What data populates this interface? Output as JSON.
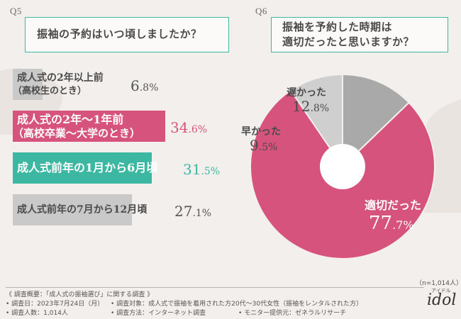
{
  "q5": {
    "label": "Q5",
    "question": "振袖の予約はいつ頃しましたか？"
  },
  "q6": {
    "label": "Q6",
    "question_line1": "振袖を予約した時期は",
    "question_line2": "適切だったと思いますか？"
  },
  "chart_data": [
    {
      "type": "bar",
      "orientation": "horizontal",
      "title": "振袖の予約はいつ頃しましたか？",
      "categories": [
        "成人式の2年以上前（高校生のとき）",
        "成人式の2年〜1年前（高校卒業〜大学のとき）",
        "成人式前年の1月から6月頃",
        "成人式前年の7月から12月頃"
      ],
      "values": [
        6.8,
        34.6,
        31.5,
        27.1
      ],
      "unit": "%",
      "colors": [
        "#c9c9c9",
        "#d6537d",
        "#3cb7a2",
        "#c9c9c9"
      ]
    },
    {
      "type": "pie",
      "title": "振袖を予約した時期は適切だったと思いますか？",
      "labels": [
        "適切だった",
        "早かった",
        "遅かった"
      ],
      "values": [
        77.7,
        9.5,
        12.8
      ],
      "unit": "%",
      "colors": [
        "#d6537d",
        "#cfcfcf",
        "#a9a9a9"
      ],
      "note": "（n=1,014人）"
    }
  ],
  "bars": [
    {
      "line1": "成人式の2年以上前",
      "line2": "（高校生のとき）",
      "pct_int": "6",
      "pct_dec": ".8%"
    },
    {
      "line1": "成人式の2年〜1年前",
      "line2": "（高校卒業〜大学のとき）",
      "pct_int": "34",
      "pct_dec": ".6%"
    },
    {
      "line1": "成人式前年の1月から6月頃",
      "line2": "",
      "pct_int": "31",
      "pct_dec": ".5%"
    },
    {
      "line1": "成人式前年の7月から12月頃",
      "line2": "",
      "pct_int": "27",
      "pct_dec": ".1%"
    }
  ],
  "pie_labels": {
    "appropriate": {
      "name": "適切だった",
      "pct_int": "77",
      "pct_dec": ".7%"
    },
    "early": {
      "name": "早かった",
      "pct_int": "9",
      "pct_dec": ".5%"
    },
    "late": {
      "name": "遅かった",
      "pct_int": "12",
      "pct_dec": ".8%"
    },
    "sample": "（n=1,014人）"
  },
  "footer": {
    "overview": "《 調査概要：「成人式の振袖選び」に関する調査 》",
    "date": "• 調査日：2023年7月24日（月）",
    "target": "• 調査対象：成人式で振袖を着用された方20代〜30代女性（振袖をレンタルされた方）",
    "count": "• 調査人数：1,014人",
    "method": "• 調査方法：インターネット調査",
    "provider": "• モニター提供元：ゼネラルリサーチ"
  },
  "logo": {
    "small": "アイドル",
    "main": "idol"
  },
  "colors": {
    "pink": "#d6537d",
    "teal": "#3cb7a2",
    "gray": "#c9c9c9",
    "dark_gray": "#a9a9a9",
    "light_gray": "#cfcfcf"
  }
}
